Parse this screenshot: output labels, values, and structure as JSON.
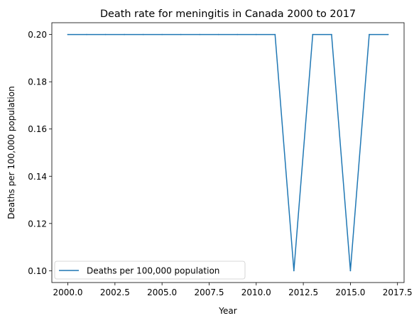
{
  "chart_data": {
    "type": "line",
    "title": "Death rate for meningitis in Canada 2000 to 2017",
    "xlabel": "Year",
    "ylabel": "Deaths per 100,000 population",
    "x": [
      2000,
      2001,
      2002,
      2003,
      2004,
      2005,
      2006,
      2007,
      2008,
      2009,
      2010,
      2011,
      2012,
      2013,
      2014,
      2015,
      2016,
      2017
    ],
    "series": [
      {
        "name": "Deaths per 100,000 population",
        "color": "#1f77b4",
        "values": [
          0.2,
          0.2,
          0.2,
          0.2,
          0.2,
          0.2,
          0.2,
          0.2,
          0.2,
          0.2,
          0.2,
          0.2,
          0.1,
          0.2,
          0.2,
          0.1,
          0.2,
          0.2
        ]
      }
    ],
    "xlim": [
      1999.15,
      2017.85
    ],
    "ylim": [
      0.095,
      0.205
    ],
    "xticks": [
      "2000.0",
      "2002.5",
      "2005.0",
      "2007.5",
      "2010.0",
      "2012.5",
      "2015.0",
      "2017.5"
    ],
    "yticks": [
      "0.10",
      "0.12",
      "0.14",
      "0.16",
      "0.18",
      "0.20"
    ],
    "grid": false,
    "legend_position": "lower-left"
  }
}
